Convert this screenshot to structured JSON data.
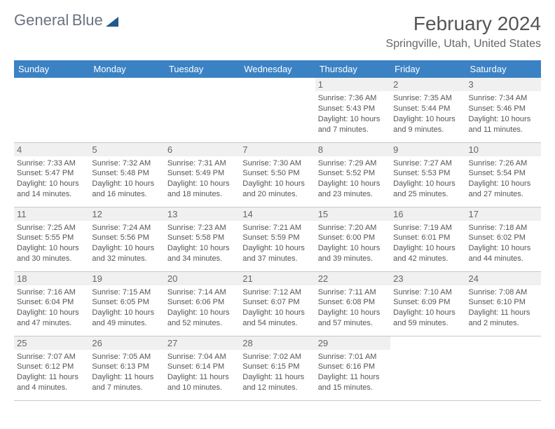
{
  "logo": {
    "text1": "General",
    "text2": "Blue"
  },
  "title": "February 2024",
  "location": "Springville, Utah, United States",
  "colors": {
    "header_bg": "#3b82c4",
    "header_text": "#ffffff",
    "daynum_bg": "#f0f0f0",
    "border": "#c8c8c8",
    "text": "#555555",
    "logo_gray": "#6b7280",
    "logo_blue": "#3b82c4"
  },
  "weekdays": [
    "Sunday",
    "Monday",
    "Tuesday",
    "Wednesday",
    "Thursday",
    "Friday",
    "Saturday"
  ],
  "weeks": [
    [
      null,
      null,
      null,
      null,
      {
        "d": "1",
        "sr": "7:36 AM",
        "ss": "5:43 PM",
        "dl": "10 hours and 7 minutes."
      },
      {
        "d": "2",
        "sr": "7:35 AM",
        "ss": "5:44 PM",
        "dl": "10 hours and 9 minutes."
      },
      {
        "d": "3",
        "sr": "7:34 AM",
        "ss": "5:46 PM",
        "dl": "10 hours and 11 minutes."
      }
    ],
    [
      {
        "d": "4",
        "sr": "7:33 AM",
        "ss": "5:47 PM",
        "dl": "10 hours and 14 minutes."
      },
      {
        "d": "5",
        "sr": "7:32 AM",
        "ss": "5:48 PM",
        "dl": "10 hours and 16 minutes."
      },
      {
        "d": "6",
        "sr": "7:31 AM",
        "ss": "5:49 PM",
        "dl": "10 hours and 18 minutes."
      },
      {
        "d": "7",
        "sr": "7:30 AM",
        "ss": "5:50 PM",
        "dl": "10 hours and 20 minutes."
      },
      {
        "d": "8",
        "sr": "7:29 AM",
        "ss": "5:52 PM",
        "dl": "10 hours and 23 minutes."
      },
      {
        "d": "9",
        "sr": "7:27 AM",
        "ss": "5:53 PM",
        "dl": "10 hours and 25 minutes."
      },
      {
        "d": "10",
        "sr": "7:26 AM",
        "ss": "5:54 PM",
        "dl": "10 hours and 27 minutes."
      }
    ],
    [
      {
        "d": "11",
        "sr": "7:25 AM",
        "ss": "5:55 PM",
        "dl": "10 hours and 30 minutes."
      },
      {
        "d": "12",
        "sr": "7:24 AM",
        "ss": "5:56 PM",
        "dl": "10 hours and 32 minutes."
      },
      {
        "d": "13",
        "sr": "7:23 AM",
        "ss": "5:58 PM",
        "dl": "10 hours and 34 minutes."
      },
      {
        "d": "14",
        "sr": "7:21 AM",
        "ss": "5:59 PM",
        "dl": "10 hours and 37 minutes."
      },
      {
        "d": "15",
        "sr": "7:20 AM",
        "ss": "6:00 PM",
        "dl": "10 hours and 39 minutes."
      },
      {
        "d": "16",
        "sr": "7:19 AM",
        "ss": "6:01 PM",
        "dl": "10 hours and 42 minutes."
      },
      {
        "d": "17",
        "sr": "7:18 AM",
        "ss": "6:02 PM",
        "dl": "10 hours and 44 minutes."
      }
    ],
    [
      {
        "d": "18",
        "sr": "7:16 AM",
        "ss": "6:04 PM",
        "dl": "10 hours and 47 minutes."
      },
      {
        "d": "19",
        "sr": "7:15 AM",
        "ss": "6:05 PM",
        "dl": "10 hours and 49 minutes."
      },
      {
        "d": "20",
        "sr": "7:14 AM",
        "ss": "6:06 PM",
        "dl": "10 hours and 52 minutes."
      },
      {
        "d": "21",
        "sr": "7:12 AM",
        "ss": "6:07 PM",
        "dl": "10 hours and 54 minutes."
      },
      {
        "d": "22",
        "sr": "7:11 AM",
        "ss": "6:08 PM",
        "dl": "10 hours and 57 minutes."
      },
      {
        "d": "23",
        "sr": "7:10 AM",
        "ss": "6:09 PM",
        "dl": "10 hours and 59 minutes."
      },
      {
        "d": "24",
        "sr": "7:08 AM",
        "ss": "6:10 PM",
        "dl": "11 hours and 2 minutes."
      }
    ],
    [
      {
        "d": "25",
        "sr": "7:07 AM",
        "ss": "6:12 PM",
        "dl": "11 hours and 4 minutes."
      },
      {
        "d": "26",
        "sr": "7:05 AM",
        "ss": "6:13 PM",
        "dl": "11 hours and 7 minutes."
      },
      {
        "d": "27",
        "sr": "7:04 AM",
        "ss": "6:14 PM",
        "dl": "11 hours and 10 minutes."
      },
      {
        "d": "28",
        "sr": "7:02 AM",
        "ss": "6:15 PM",
        "dl": "11 hours and 12 minutes."
      },
      {
        "d": "29",
        "sr": "7:01 AM",
        "ss": "6:16 PM",
        "dl": "11 hours and 15 minutes."
      },
      null,
      null
    ]
  ],
  "labels": {
    "sunrise": "Sunrise:",
    "sunset": "Sunset:",
    "daylight": "Daylight:"
  }
}
